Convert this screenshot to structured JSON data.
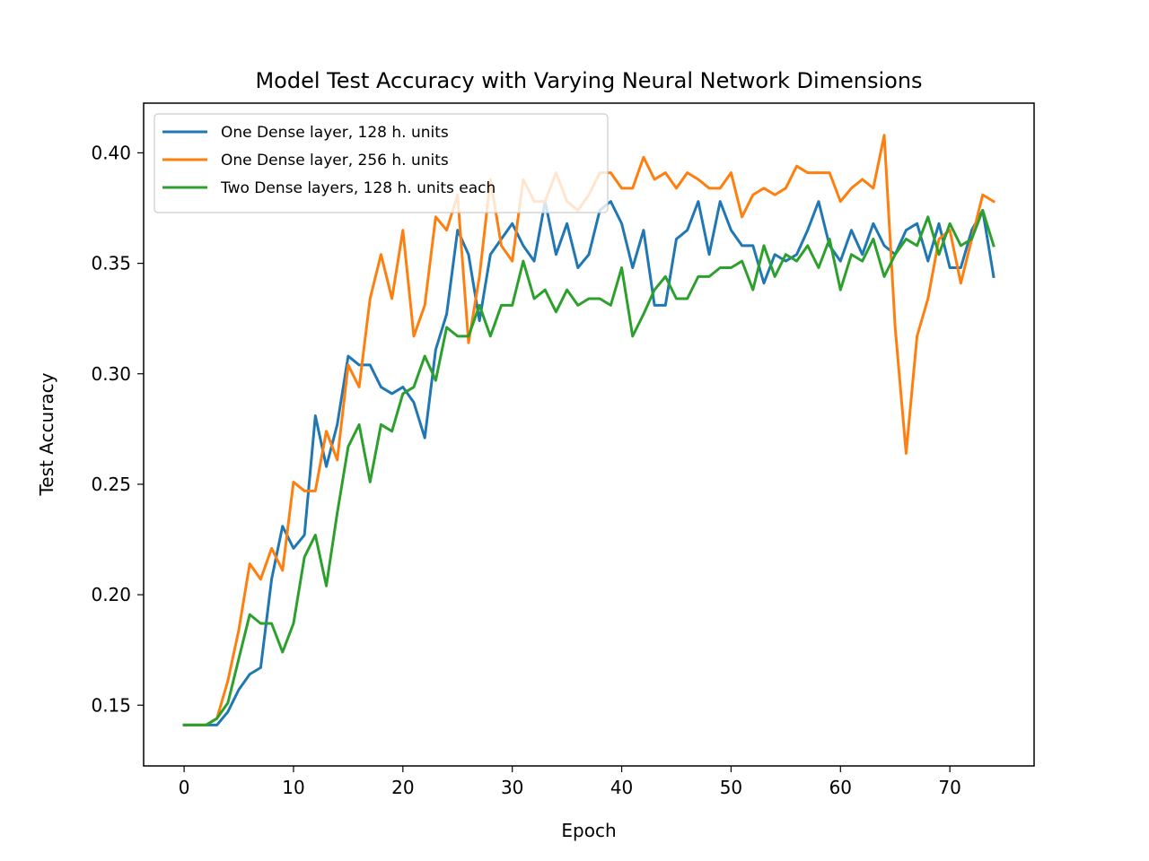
{
  "chart_data": {
    "type": "line",
    "title": "Model Test Accuracy with Varying Neural Network Dimensions",
    "xlabel": "Epoch",
    "ylabel": "Test Accuracy",
    "xlim": [
      -3.7,
      77.7
    ],
    "ylim": [
      0.1225,
      0.4225
    ],
    "xticks": [
      0,
      10,
      20,
      30,
      40,
      50,
      60,
      70
    ],
    "yticks": [
      0.15,
      0.2,
      0.25,
      0.3,
      0.35,
      0.4
    ],
    "ytick_labels": [
      "0.15",
      "0.20",
      "0.25",
      "0.30",
      "0.35",
      "0.40"
    ],
    "grid": false,
    "legend_position": "top-left",
    "x": [
      0,
      1,
      2,
      3,
      4,
      5,
      6,
      7,
      8,
      9,
      10,
      11,
      12,
      13,
      14,
      15,
      16,
      17,
      18,
      19,
      20,
      21,
      22,
      23,
      24,
      25,
      26,
      27,
      28,
      29,
      30,
      31,
      32,
      33,
      34,
      35,
      36,
      37,
      38,
      39,
      40,
      41,
      42,
      43,
      44,
      45,
      46,
      47,
      48,
      49,
      50,
      51,
      52,
      53,
      54,
      55,
      56,
      57,
      58,
      59,
      60,
      61,
      62,
      63,
      64,
      65,
      66,
      67,
      68,
      69,
      70,
      71,
      72,
      73,
      74
    ],
    "series": [
      {
        "name": "One Dense layer, 128 h. units",
        "color": "#1f77b4",
        "values": [
          0.141,
          0.141,
          0.141,
          0.141,
          0.147,
          0.157,
          0.164,
          0.167,
          0.207,
          0.231,
          0.221,
          0.227,
          0.281,
          0.258,
          0.277,
          0.308,
          0.304,
          0.304,
          0.294,
          0.291,
          0.294,
          0.287,
          0.271,
          0.311,
          0.327,
          0.365,
          0.354,
          0.324,
          0.354,
          0.361,
          0.368,
          0.358,
          0.351,
          0.378,
          0.354,
          0.368,
          0.348,
          0.354,
          0.374,
          0.378,
          0.368,
          0.348,
          0.365,
          0.331,
          0.331,
          0.361,
          0.365,
          0.378,
          0.354,
          0.378,
          0.365,
          0.358,
          0.358,
          0.341,
          0.354,
          0.351,
          0.354,
          0.365,
          0.378,
          0.358,
          0.351,
          0.365,
          0.354,
          0.368,
          0.358,
          0.354,
          0.365,
          0.368,
          0.351,
          0.368,
          0.348,
          0.348,
          0.365,
          0.374,
          0.344
        ]
      },
      {
        "name": "One Dense layer, 256 h. units",
        "color": "#ff7f0e",
        "values": [
          0.141,
          0.141,
          0.141,
          0.144,
          0.161,
          0.184,
          0.214,
          0.207,
          0.221,
          0.211,
          0.251,
          0.247,
          0.247,
          0.274,
          0.261,
          0.304,
          0.294,
          0.334,
          0.354,
          0.334,
          0.365,
          0.317,
          0.331,
          0.371,
          0.365,
          0.381,
          0.314,
          0.344,
          0.388,
          0.358,
          0.351,
          0.388,
          0.378,
          0.378,
          0.391,
          0.378,
          0.374,
          0.381,
          0.391,
          0.391,
          0.384,
          0.384,
          0.398,
          0.388,
          0.391,
          0.384,
          0.391,
          0.388,
          0.384,
          0.384,
          0.391,
          0.371,
          0.381,
          0.384,
          0.381,
          0.384,
          0.394,
          0.391,
          0.391,
          0.391,
          0.378,
          0.384,
          0.388,
          0.384,
          0.408,
          0.321,
          0.264,
          0.317,
          0.334,
          0.361,
          0.365,
          0.341,
          0.361,
          0.381,
          0.378
        ]
      },
      {
        "name": "Two Dense layers, 128 h. units each",
        "color": "#2ca02c",
        "values": [
          0.141,
          0.141,
          0.141,
          0.144,
          0.151,
          0.171,
          0.191,
          0.187,
          0.187,
          0.174,
          0.187,
          0.217,
          0.227,
          0.204,
          0.237,
          0.267,
          0.277,
          0.251,
          0.277,
          0.274,
          0.291,
          0.294,
          0.308,
          0.297,
          0.321,
          0.317,
          0.317,
          0.331,
          0.317,
          0.331,
          0.331,
          0.351,
          0.334,
          0.338,
          0.328,
          0.338,
          0.331,
          0.334,
          0.334,
          0.331,
          0.348,
          0.317,
          0.327,
          0.338,
          0.344,
          0.334,
          0.334,
          0.344,
          0.344,
          0.348,
          0.348,
          0.351,
          0.338,
          0.358,
          0.344,
          0.354,
          0.351,
          0.358,
          0.348,
          0.361,
          0.338,
          0.354,
          0.351,
          0.361,
          0.344,
          0.354,
          0.361,
          0.358,
          0.371,
          0.354,
          0.368,
          0.358,
          0.361,
          0.374,
          0.358
        ]
      }
    ]
  }
}
